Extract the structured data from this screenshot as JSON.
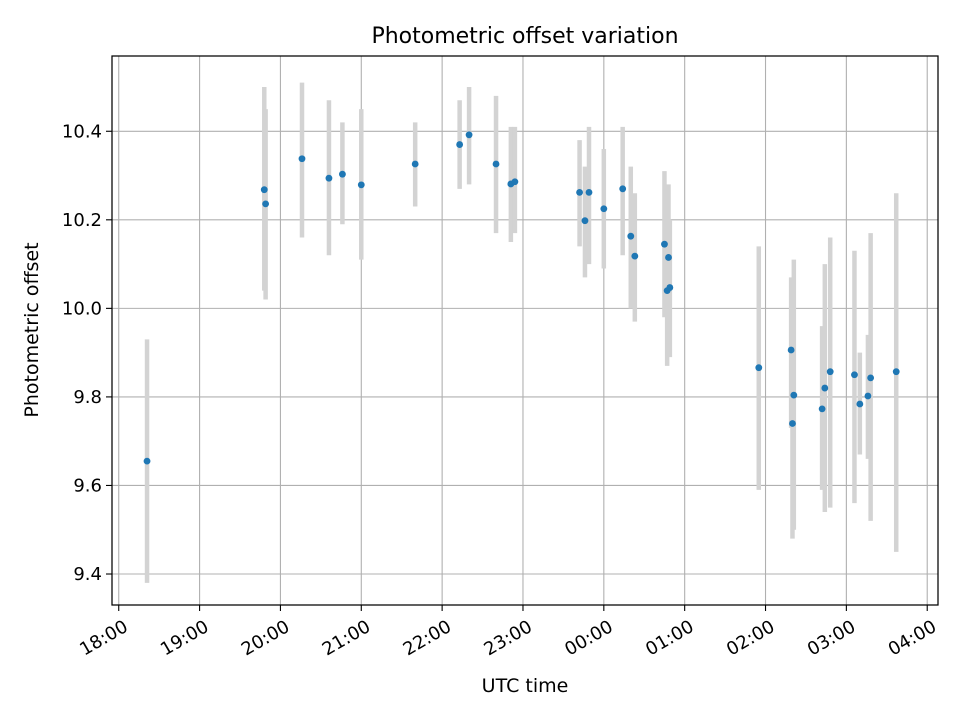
{
  "chart_data": {
    "type": "scatter",
    "title": "Photometric offset variation",
    "xlabel": "UTC time",
    "ylabel": "Photometric offset",
    "x_format": "time (UTC), second value is the following day after midnight",
    "xlim": [
      "17:55",
      "04:08"
    ],
    "ylim": [
      9.33,
      10.57
    ],
    "x_ticks": [
      "18:00",
      "19:00",
      "20:00",
      "21:00",
      "22:00",
      "23:00",
      "00:00",
      "01:00",
      "02:00",
      "03:00",
      "04:00"
    ],
    "y_ticks": [
      "9.4",
      "9.6",
      "9.8",
      "10.0",
      "10.2",
      "10.4"
    ],
    "y_tick_values": [
      9.4,
      9.6,
      9.8,
      10.0,
      10.2,
      10.4
    ],
    "grid": true,
    "colors": {
      "point": "#1f77b4",
      "errorbar": "#d3d3d3",
      "grid": "#b0b0b0"
    },
    "points": [
      {
        "t": "18:21",
        "y": 9.655,
        "lo": 9.38,
        "hi": 9.93
      },
      {
        "t": "19:48",
        "y": 10.268,
        "lo": 10.04,
        "hi": 10.5
      },
      {
        "t": "19:49",
        "y": 10.236,
        "lo": 10.02,
        "hi": 10.45
      },
      {
        "t": "20:16",
        "y": 10.338,
        "lo": 10.16,
        "hi": 10.51
      },
      {
        "t": "20:36",
        "y": 10.294,
        "lo": 10.12,
        "hi": 10.47
      },
      {
        "t": "20:46",
        "y": 10.303,
        "lo": 10.19,
        "hi": 10.42
      },
      {
        "t": "21:00",
        "y": 10.279,
        "lo": 10.11,
        "hi": 10.45
      },
      {
        "t": "21:40",
        "y": 10.326,
        "lo": 10.23,
        "hi": 10.42
      },
      {
        "t": "22:13",
        "y": 10.37,
        "lo": 10.27,
        "hi": 10.47
      },
      {
        "t": "22:20",
        "y": 10.392,
        "lo": 10.28,
        "hi": 10.5
      },
      {
        "t": "22:40",
        "y": 10.326,
        "lo": 10.17,
        "hi": 10.48
      },
      {
        "t": "22:51",
        "y": 10.281,
        "lo": 10.15,
        "hi": 10.41
      },
      {
        "t": "22:54",
        "y": 10.286,
        "lo": 10.17,
        "hi": 10.41
      },
      {
        "t": "23:42",
        "y": 10.262,
        "lo": 10.14,
        "hi": 10.38
      },
      {
        "t": "23:46",
        "y": 10.198,
        "lo": 10.07,
        "hi": 10.32
      },
      {
        "t": "23:49",
        "y": 10.262,
        "lo": 10.1,
        "hi": 10.41
      },
      {
        "t": "00:00",
        "y": 10.225,
        "lo": 10.09,
        "hi": 10.36
      },
      {
        "t": "00:14",
        "y": 10.27,
        "lo": 10.12,
        "hi": 10.41
      },
      {
        "t": "00:20",
        "y": 10.163,
        "lo": 10.0,
        "hi": 10.32
      },
      {
        "t": "00:23",
        "y": 10.118,
        "lo": 9.97,
        "hi": 10.26
      },
      {
        "t": "00:45",
        "y": 10.145,
        "lo": 9.98,
        "hi": 10.31
      },
      {
        "t": "00:47",
        "y": 10.04,
        "lo": 9.87,
        "hi": 10.21
      },
      {
        "t": "00:48",
        "y": 10.115,
        "lo": 9.95,
        "hi": 10.28
      },
      {
        "t": "00:49",
        "y": 10.047,
        "lo": 9.89,
        "hi": 10.2
      },
      {
        "t": "01:55",
        "y": 9.866,
        "lo": 9.59,
        "hi": 10.14
      },
      {
        "t": "02:19",
        "y": 9.906,
        "lo": 9.73,
        "hi": 10.07
      },
      {
        "t": "02:20",
        "y": 9.74,
        "lo": 9.48,
        "hi": 10.0
      },
      {
        "t": "02:21",
        "y": 9.804,
        "lo": 9.5,
        "hi": 10.11
      },
      {
        "t": "02:42",
        "y": 9.773,
        "lo": 9.59,
        "hi": 9.96
      },
      {
        "t": "02:44",
        "y": 9.82,
        "lo": 9.54,
        "hi": 10.1
      },
      {
        "t": "02:48",
        "y": 9.857,
        "lo": 9.55,
        "hi": 10.16
      },
      {
        "t": "03:06",
        "y": 9.85,
        "lo": 9.56,
        "hi": 10.13
      },
      {
        "t": "03:10",
        "y": 9.784,
        "lo": 9.67,
        "hi": 9.9
      },
      {
        "t": "03:16",
        "y": 9.802,
        "lo": 9.66,
        "hi": 9.94
      },
      {
        "t": "03:18",
        "y": 9.843,
        "lo": 9.52,
        "hi": 10.17
      },
      {
        "t": "03:37",
        "y": 9.857,
        "lo": 9.45,
        "hi": 10.26
      }
    ]
  }
}
